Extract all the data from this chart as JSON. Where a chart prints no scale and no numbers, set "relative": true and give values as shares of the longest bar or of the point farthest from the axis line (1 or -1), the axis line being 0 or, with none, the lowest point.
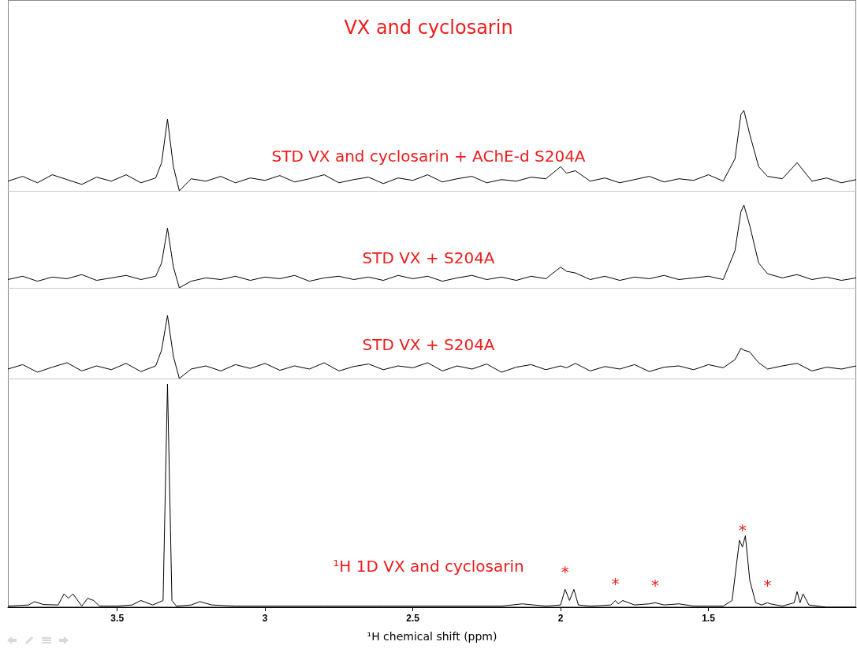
{
  "chart_data": [
    {
      "type": "line",
      "title": "VX and cyclosarin",
      "subtitle": "STD VX and cyclosarin + AChE-d S204A",
      "relative": true,
      "xlim": [
        3.87,
        1.0
      ],
      "tick_labels": false,
      "grid": false,
      "marker": "none",
      "line_style": "solid",
      "x": [
        3.87,
        3.82,
        3.77,
        3.72,
        3.67,
        3.62,
        3.57,
        3.52,
        3.47,
        3.42,
        3.37,
        3.35,
        3.33,
        3.31,
        3.29,
        3.25,
        3.2,
        3.15,
        3.1,
        3.05,
        3.0,
        2.95,
        2.9,
        2.85,
        2.8,
        2.75,
        2.7,
        2.65,
        2.6,
        2.55,
        2.5,
        2.45,
        2.4,
        2.35,
        2.3,
        2.25,
        2.2,
        2.15,
        2.1,
        2.05,
        2.0,
        1.98,
        1.95,
        1.9,
        1.85,
        1.8,
        1.75,
        1.7,
        1.65,
        1.6,
        1.55,
        1.5,
        1.45,
        1.41,
        1.39,
        1.38,
        1.36,
        1.33,
        1.3,
        1.25,
        1.2,
        1.15,
        1.1,
        1.05,
        1.0
      ],
      "series": [
        {
          "color": "#000000",
          "values": [
            0.12,
            0.18,
            0.1,
            0.2,
            0.14,
            0.08,
            0.17,
            0.12,
            0.2,
            0.1,
            0.16,
            0.35,
            0.89,
            0.3,
            0,
            0.15,
            0.12,
            0.18,
            0.1,
            0.16,
            0.13,
            0.19,
            0.11,
            0.15,
            0.2,
            0.1,
            0.14,
            0.17,
            0.09,
            0.16,
            0.13,
            0.2,
            0.11,
            0.15,
            0.18,
            0.1,
            0.14,
            0.12,
            0.17,
            0.15,
            0.3,
            0.22,
            0.25,
            0.12,
            0.16,
            0.1,
            0.14,
            0.18,
            0.11,
            0.15,
            0.13,
            0.2,
            0.12,
            0.4,
            0.95,
            1.0,
            0.7,
            0.3,
            0.18,
            0.15,
            0.35,
            0.12,
            0.16,
            0.1,
            0.14
          ]
        }
      ]
    },
    {
      "type": "line",
      "title": "STD VX + S204A",
      "relative": true,
      "xlim": [
        3.87,
        1.0
      ],
      "tick_labels": false,
      "grid": false,
      "marker": "none",
      "line_style": "solid",
      "x": [
        3.87,
        3.82,
        3.77,
        3.72,
        3.67,
        3.62,
        3.57,
        3.52,
        3.47,
        3.42,
        3.37,
        3.35,
        3.33,
        3.31,
        3.29,
        3.25,
        3.2,
        3.15,
        3.1,
        3.05,
        3.0,
        2.95,
        2.9,
        2.85,
        2.8,
        2.75,
        2.7,
        2.65,
        2.6,
        2.55,
        2.5,
        2.45,
        2.4,
        2.35,
        2.3,
        2.25,
        2.2,
        2.15,
        2.1,
        2.05,
        2.0,
        1.98,
        1.95,
        1.9,
        1.85,
        1.8,
        1.75,
        1.7,
        1.65,
        1.6,
        1.55,
        1.5,
        1.45,
        1.41,
        1.39,
        1.38,
        1.36,
        1.33,
        1.3,
        1.25,
        1.2,
        1.15,
        1.1,
        1.05,
        1.0
      ],
      "series": [
        {
          "color": "#000000",
          "values": [
            0.1,
            0.14,
            0.08,
            0.13,
            0.11,
            0.16,
            0.09,
            0.12,
            0.15,
            0.1,
            0.14,
            0.3,
            0.72,
            0.25,
            0,
            0.08,
            0.12,
            0.1,
            0.14,
            0.09,
            0.13,
            0.11,
            0.15,
            0.08,
            0.12,
            0.14,
            0.1,
            0.13,
            0.09,
            0.15,
            0.11,
            0.14,
            0.08,
            0.12,
            0.15,
            0.1,
            0.13,
            0.09,
            0.14,
            0.11,
            0.25,
            0.2,
            0.18,
            0.1,
            0.14,
            0.09,
            0.13,
            0.11,
            0.15,
            0.1,
            0.12,
            0.14,
            0.1,
            0.45,
            0.92,
            1.0,
            0.75,
            0.3,
            0.17,
            0.12,
            0.16,
            0.1,
            0.13,
            0.09,
            0.12
          ]
        }
      ]
    },
    {
      "type": "line",
      "title": "STD VX + S204A",
      "relative": true,
      "xlim": [
        3.87,
        1.0
      ],
      "tick_labels": false,
      "grid": false,
      "marker": "none",
      "line_style": "solid",
      "x": [
        3.87,
        3.82,
        3.77,
        3.72,
        3.67,
        3.62,
        3.57,
        3.52,
        3.47,
        3.42,
        3.37,
        3.35,
        3.33,
        3.31,
        3.29,
        3.25,
        3.2,
        3.15,
        3.1,
        3.05,
        3.0,
        2.95,
        2.9,
        2.85,
        2.8,
        2.75,
        2.7,
        2.65,
        2.6,
        2.55,
        2.5,
        2.45,
        2.4,
        2.35,
        2.3,
        2.25,
        2.2,
        2.15,
        2.1,
        2.05,
        2.0,
        1.98,
        1.95,
        1.9,
        1.85,
        1.8,
        1.75,
        1.7,
        1.65,
        1.6,
        1.55,
        1.5,
        1.45,
        1.41,
        1.39,
        1.38,
        1.36,
        1.33,
        1.3,
        1.25,
        1.2,
        1.15,
        1.1,
        1.05,
        1.0
      ],
      "series": [
        {
          "color": "#000000",
          "values": [
            0.15,
            0.22,
            0.1,
            0.18,
            0.25,
            0.12,
            0.2,
            0.14,
            0.24,
            0.11,
            0.2,
            0.45,
            1.0,
            0.35,
            0,
            0.15,
            0.2,
            0.12,
            0.22,
            0.16,
            0.24,
            0.13,
            0.2,
            0.15,
            0.25,
            0.12,
            0.19,
            0.23,
            0.14,
            0.2,
            0.17,
            0.25,
            0.12,
            0.2,
            0.15,
            0.23,
            0.1,
            0.18,
            0.22,
            0.14,
            0.2,
            0.17,
            0.24,
            0.12,
            0.19,
            0.15,
            0.22,
            0.11,
            0.18,
            0.2,
            0.14,
            0.22,
            0.17,
            0.3,
            0.48,
            0.45,
            0.42,
            0.25,
            0.15,
            0.2,
            0.24,
            0.12,
            0.18,
            0.15,
            0.2
          ]
        }
      ]
    },
    {
      "type": "line",
      "title": "¹H 1D VX and cyclosarin",
      "xlabel": "¹H chemical shift (ppm)",
      "relative": true,
      "xlim": [
        3.87,
        1.0
      ],
      "xticks": [
        3.5,
        3.0,
        2.5,
        2.0,
        1.5
      ],
      "tick_labels": "x",
      "grid": false,
      "marker": "none",
      "line_style": "solid",
      "x": [
        3.87,
        3.8,
        3.78,
        3.75,
        3.7,
        3.68,
        3.665,
        3.65,
        3.62,
        3.6,
        3.58,
        3.56,
        3.5,
        3.45,
        3.42,
        3.38,
        3.345,
        3.33,
        3.315,
        3.3,
        3.25,
        3.22,
        3.18,
        3.1,
        3.0,
        2.8,
        2.6,
        2.4,
        2.2,
        2.13,
        2.05,
        2.0,
        1.985,
        1.97,
        1.955,
        1.94,
        1.9,
        1.83,
        1.815,
        1.805,
        1.79,
        1.75,
        1.7,
        1.68,
        1.65,
        1.6,
        1.55,
        1.5,
        1.45,
        1.42,
        1.395,
        1.385,
        1.375,
        1.36,
        1.34,
        1.32,
        1.3,
        1.29,
        1.25,
        1.21,
        1.2,
        1.19,
        1.18,
        1.16,
        1.1,
        1.0
      ],
      "series": [
        {
          "color": "#000000",
          "values": [
            0.005,
            0.01,
            0.025,
            0.012,
            0.01,
            0.06,
            0.04,
            0.06,
            0.005,
            0.04,
            0.03,
            0.005,
            0.005,
            0.01,
            0.03,
            0.01,
            0.03,
            1.0,
            0.03,
            0.005,
            0.01,
            0.025,
            0.01,
            0.005,
            0.005,
            0.005,
            0.005,
            0.005,
            0.005,
            0.015,
            0.005,
            0.01,
            0.08,
            0.03,
            0.08,
            0.01,
            0.005,
            0.01,
            0.03,
            0.015,
            0.03,
            0.01,
            0.015,
            0.02,
            0.01,
            0.015,
            0.005,
            0.005,
            0.005,
            0.03,
            0.3,
            0.27,
            0.32,
            0.12,
            0.02,
            0.01,
            0.02,
            0.015,
            0.005,
            0.02,
            0.07,
            0.02,
            0.06,
            0.01,
            0,
            0
          ]
        }
      ],
      "annotations": [
        {
          "text": "*",
          "x": 1.985,
          "y": 0.08
        },
        {
          "text": "*",
          "x": 1.815,
          "y": 0.03
        },
        {
          "text": "*",
          "x": 1.68,
          "y": 0.02
        },
        {
          "text": "*",
          "x": 1.385,
          "y": 0.27
        },
        {
          "text": "*",
          "x": 1.3,
          "y": 0.02
        }
      ]
    }
  ]
}
